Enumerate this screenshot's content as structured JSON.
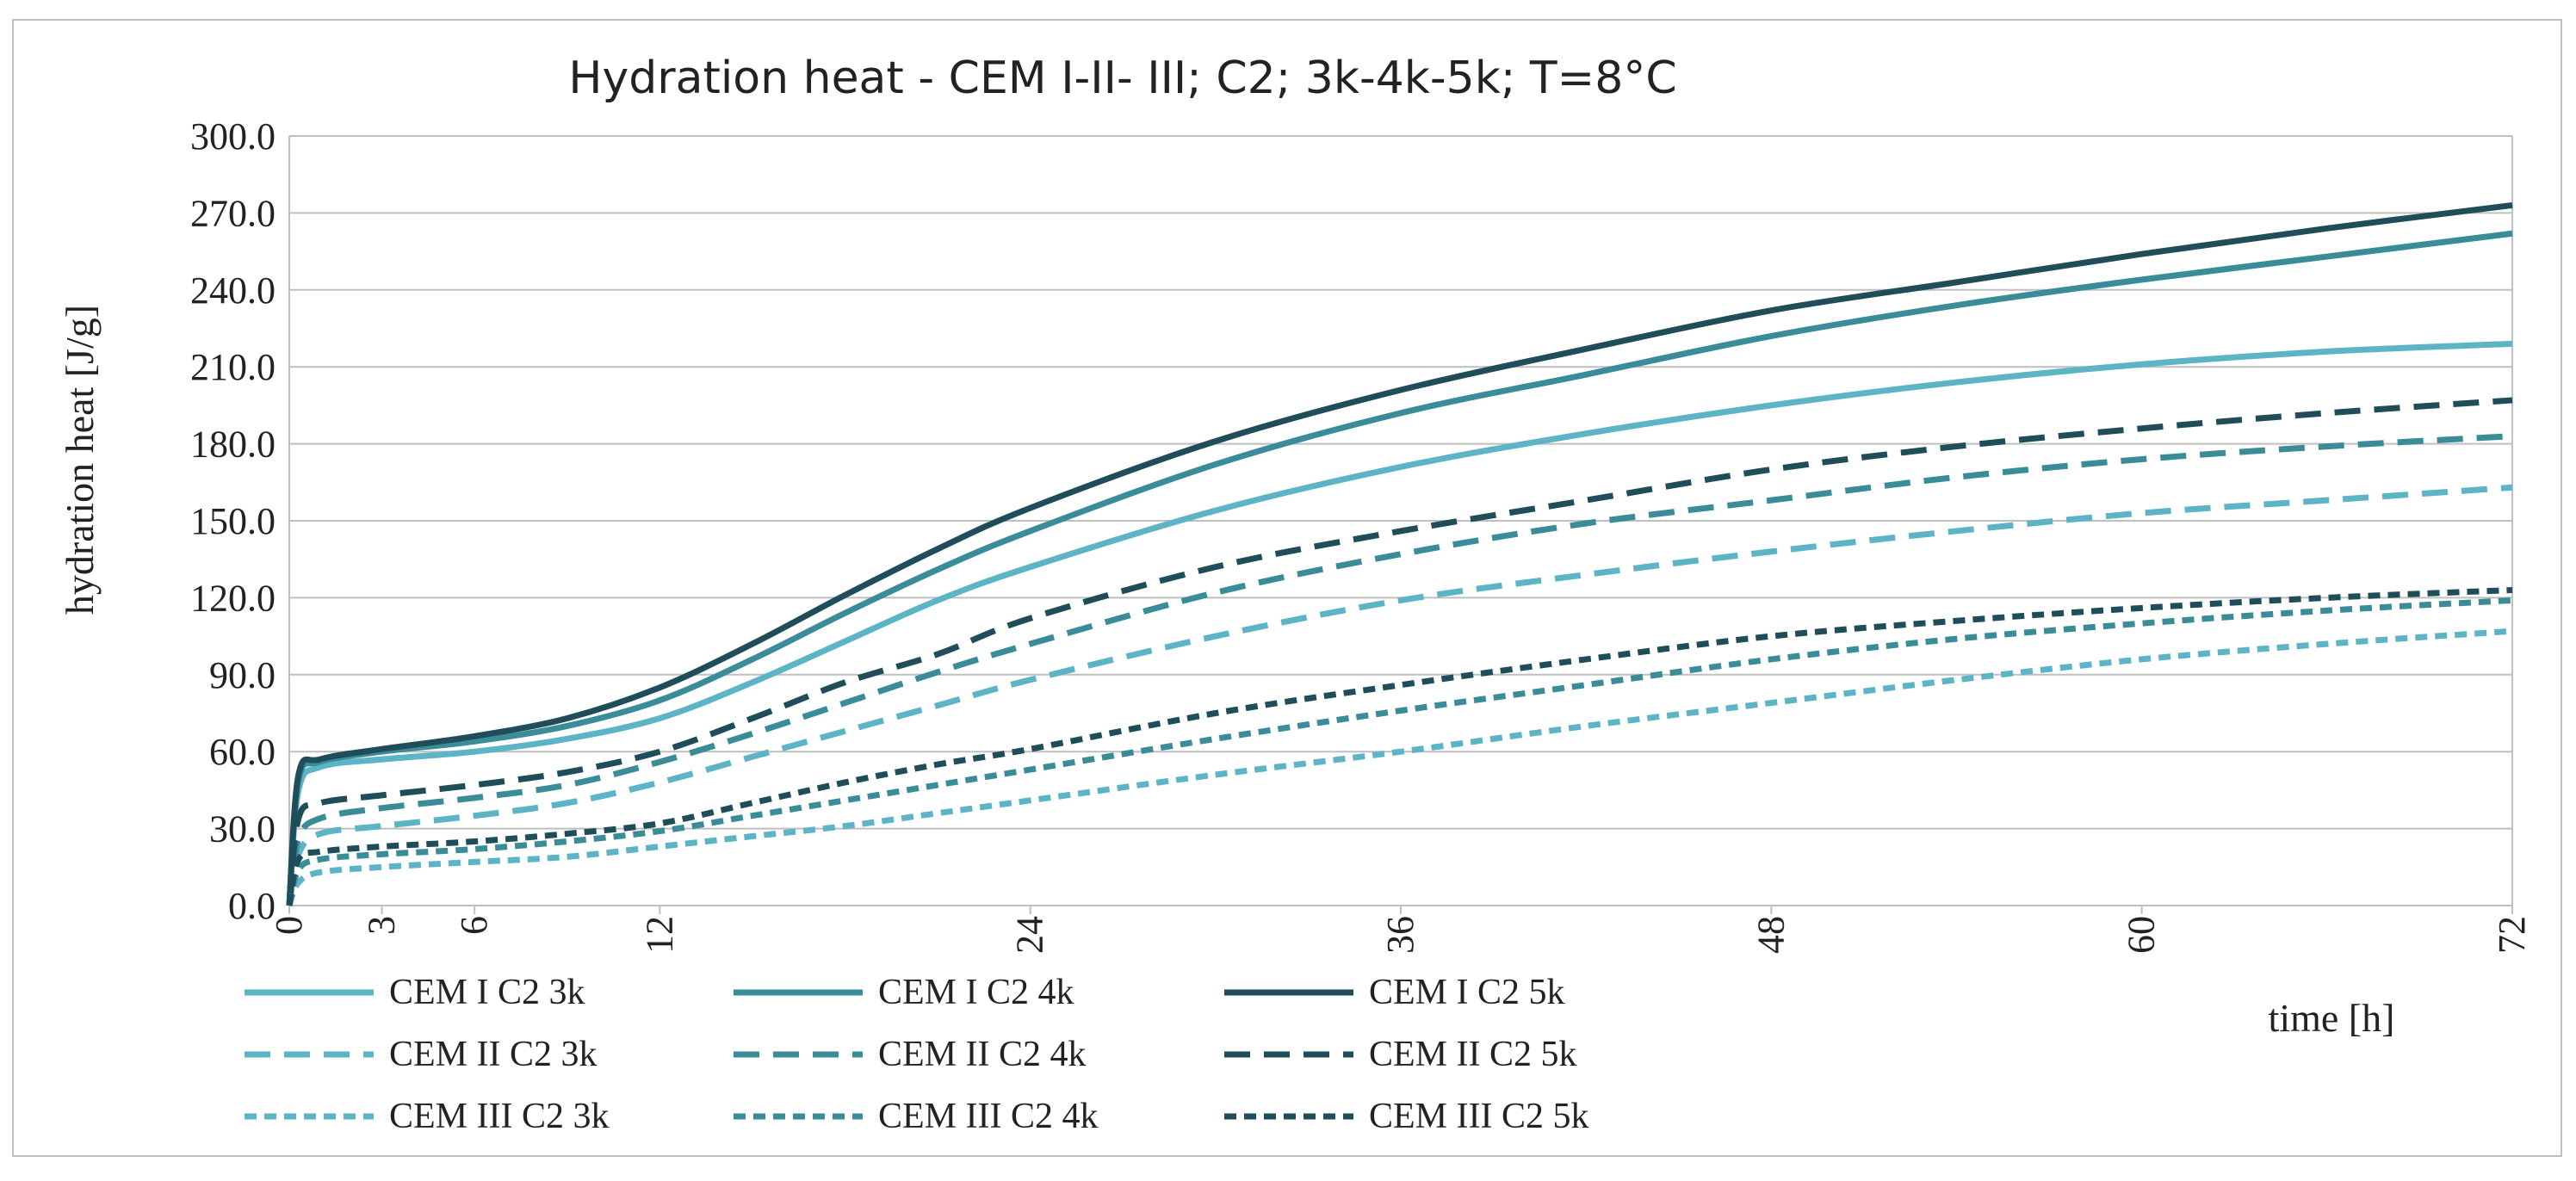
{
  "chart_data": {
    "type": "line",
    "title": "Hydration heat - CEM I-II- III; C2; 3k-4k-5k; T=8°C",
    "xlabel": "time [h]",
    "ylabel": "hydration heat [J/g]",
    "xlim": [
      0,
      72
    ],
    "ylim": [
      0,
      300
    ],
    "xticks": [
      "0",
      "3",
      "6",
      "12",
      "24",
      "36",
      "48",
      "60",
      "72"
    ],
    "xtick_values": [
      0,
      3,
      6,
      12,
      24,
      36,
      48,
      60,
      72
    ],
    "yticks": [
      "0.0",
      "30.0",
      "60.0",
      "90.0",
      "120.0",
      "150.0",
      "180.0",
      "210.0",
      "240.0",
      "270.0",
      "300.0"
    ],
    "ytick_values": [
      0,
      30,
      60,
      90,
      120,
      150,
      180,
      210,
      240,
      270,
      300
    ],
    "grid": "horizontal",
    "legend_position": "bottom",
    "x": [
      0,
      0.3,
      1,
      3,
      6,
      9,
      12,
      15,
      18,
      21,
      24,
      30,
      36,
      42,
      48,
      54,
      60,
      66,
      72
    ],
    "series": [
      {
        "name": "CEM I C2 3k",
        "color": "#5db4c6",
        "style": "solid",
        "values": [
          0,
          45,
          54,
          57,
          60,
          65,
          73,
          87,
          103,
          119,
          132,
          154,
          171,
          184,
          195,
          204,
          211,
          216,
          219
        ]
      },
      {
        "name": "CEM I C2 4k",
        "color": "#3b8c99",
        "style": "solid",
        "values": [
          0,
          49,
          56,
          60,
          64,
          70,
          80,
          96,
          114,
          131,
          146,
          172,
          192,
          207,
          222,
          234,
          244,
          253,
          262
        ]
      },
      {
        "name": "CEM I C2 5k",
        "color": "#1f4e5a",
        "style": "solid",
        "values": [
          0,
          51,
          57,
          61,
          66,
          73,
          85,
          102,
          121,
          139,
          155,
          181,
          201,
          217,
          232,
          243,
          254,
          264,
          273
        ]
      },
      {
        "name": "CEM II C2 3k",
        "color": "#5db4c6",
        "style": "dashed",
        "values": [
          0,
          20,
          28,
          31,
          35,
          40,
          48,
          58,
          68,
          78,
          88,
          105,
          119,
          129,
          138,
          146,
          153,
          158,
          163
        ]
      },
      {
        "name": "CEM II C2 4k",
        "color": "#3b8c99",
        "style": "dashed",
        "values": [
          0,
          26,
          34,
          38,
          42,
          47,
          56,
          67,
          79,
          91,
          102,
          122,
          137,
          149,
          158,
          167,
          174,
          179,
          183
        ]
      },
      {
        "name": "CEM II C2 5k",
        "color": "#1f4e5a",
        "style": "dashed",
        "values": [
          0,
          34,
          40,
          43,
          47,
          52,
          60,
          73,
          87,
          98,
          112,
          132,
          146,
          158,
          170,
          179,
          186,
          192,
          197
        ]
      },
      {
        "name": "CEM III C2 3k",
        "color": "#5db4c6",
        "style": "dotted",
        "values": [
          0,
          9,
          13,
          15,
          17,
          19,
          23,
          27,
          31,
          36,
          41,
          51,
          60,
          70,
          79,
          88,
          96,
          102,
          107
        ]
      },
      {
        "name": "CEM III C2 4k",
        "color": "#3b8c99",
        "style": "dotted",
        "values": [
          0,
          14,
          18,
          20,
          22,
          25,
          29,
          35,
          41,
          47,
          53,
          65,
          76,
          86,
          96,
          104,
          110,
          115,
          119
        ]
      },
      {
        "name": "CEM III C2 5k",
        "color": "#1f4e5a",
        "style": "dotted",
        "values": [
          0,
          18,
          21,
          23,
          25,
          28,
          32,
          40,
          48,
          55,
          61,
          75,
          86,
          96,
          105,
          111,
          116,
          120,
          123
        ]
      }
    ]
  }
}
